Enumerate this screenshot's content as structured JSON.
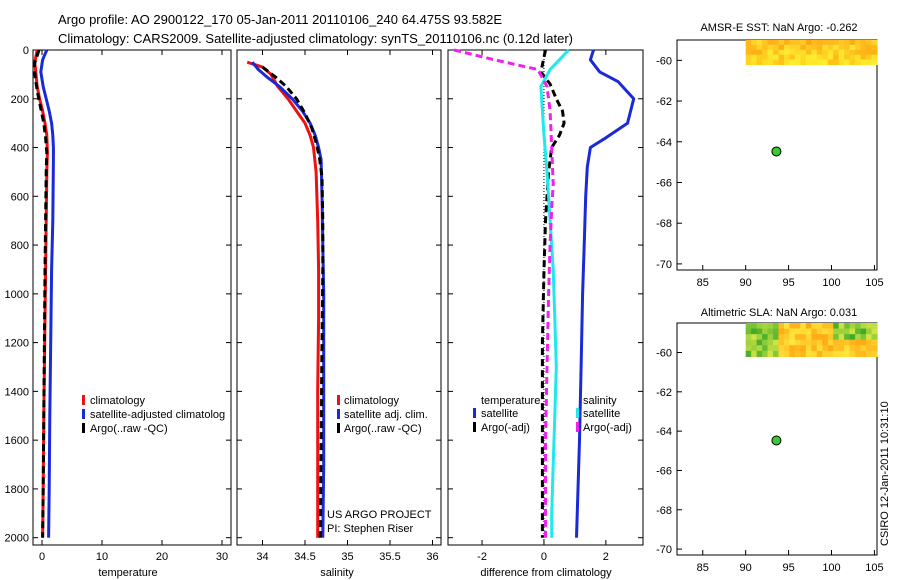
{
  "figure": {
    "title_line1": "Argo profile: AO 2900122_170 05-Jan-2011 20110106_240 64.475S 93.582E",
    "title_line2": "Climatology: CARS2009. Satellite-adjusted climatology: synTS_20110106.nc (0.12d later)",
    "credit_line1": "US ARGO PROJECT",
    "credit_line2": "PI: Stephen Riser",
    "stamp": "CSIRO 12-Jan-2011 10:31:10"
  },
  "colors": {
    "climatology": "#ee1111",
    "satellite": "#1a2ad6",
    "argo": "#000000",
    "satellite_salinity": "#22e8ee",
    "argo_salinity": "#ee22ee",
    "map_point": "#33cc33"
  },
  "chart_data": [
    {
      "id": "temperature",
      "type": "line",
      "xlabel": "temperature",
      "xlim": [
        -1.5,
        31.5
      ],
      "ylim": [
        2030,
        0
      ],
      "xticks": [
        0,
        10,
        20,
        30
      ],
      "xtick_labels": [
        "0",
        "10",
        "20",
        "30"
      ],
      "yticks": [
        0,
        200,
        400,
        600,
        800,
        1000,
        1200,
        1400,
        1600,
        1800,
        2000
      ],
      "ytick_labels": [
        "0",
        "200",
        "400",
        "600",
        "800",
        "1000",
        "1200",
        "1400",
        "1600",
        "1800",
        "2000"
      ],
      "legend": [
        "climatology",
        "satellite-adjusted climatolog",
        "Argo(..raw -QC)"
      ],
      "series": [
        {
          "name": "climatology",
          "style": "solid",
          "color": "#ee1111",
          "x": [
            -0.8,
            -1.2,
            -1.0,
            -0.8,
            -0.4,
            0.1,
            0.5,
            0.8,
            0.9,
            0.8,
            0.7,
            0.6,
            0.5,
            0.4,
            0.3,
            0.2,
            0.1
          ],
          "y": [
            0,
            50,
            100,
            150,
            200,
            250,
            300,
            350,
            420,
            500,
            700,
            900,
            1100,
            1300,
            1500,
            1800,
            2000
          ]
        },
        {
          "name": "satellite-adjusted climatolog",
          "style": "solid",
          "color": "#1a2ad6",
          "x": [
            0.8,
            0.1,
            -0.2,
            0.2,
            0.7,
            1.2,
            1.6,
            1.8,
            1.9,
            1.9,
            1.8,
            1.6,
            1.5,
            1.4,
            1.3,
            1.2,
            1.1
          ],
          "y": [
            0,
            40,
            90,
            150,
            200,
            250,
            300,
            350,
            400,
            450,
            700,
            900,
            1100,
            1300,
            1500,
            1800,
            2000
          ]
        },
        {
          "name": "Argo(..raw -QC)",
          "style": "dashed",
          "color": "#000000",
          "x": [
            -0.5,
            -1.3,
            -1.1,
            -0.7,
            -0.2,
            0.3,
            0.6,
            0.8,
            0.7,
            0.6,
            0.5,
            0.4,
            0.3,
            0.2,
            0.1
          ],
          "y": [
            0,
            60,
            120,
            180,
            240,
            300,
            360,
            420,
            500,
            700,
            900,
            1200,
            1500,
            1800,
            2000
          ]
        }
      ]
    },
    {
      "id": "salinity",
      "type": "line",
      "xlabel": "salinity",
      "xlim": [
        33.7,
        36.1
      ],
      "ylim": [
        2030,
        0
      ],
      "xticks": [
        34,
        34.5,
        35,
        35.5,
        36
      ],
      "xtick_labels": [
        "34",
        "34.5",
        "35",
        "35.5",
        "36"
      ],
      "legend": [
        "climatology",
        "satellite adj. clim.",
        "Argo(..raw -QC)"
      ],
      "series": [
        {
          "name": "climatology",
          "style": "solid",
          "color": "#ee1111",
          "x": [
            33.82,
            34.0,
            34.1,
            34.18,
            34.3,
            34.4,
            34.5,
            34.56,
            34.6,
            34.63,
            34.65,
            34.66,
            34.66,
            34.65,
            34.65,
            34.65
          ],
          "y": [
            50,
            70,
            100,
            150,
            200,
            250,
            300,
            350,
            400,
            500,
            700,
            900,
            1100,
            1400,
            1700,
            2000
          ]
        },
        {
          "name": "satellite adj. clim.",
          "style": "solid",
          "color": "#1a2ad6",
          "x": [
            33.88,
            33.95,
            34.05,
            34.2,
            34.35,
            34.47,
            34.56,
            34.62,
            34.66,
            34.69,
            34.7,
            34.71,
            34.72,
            34.72,
            34.72,
            34.71
          ],
          "y": [
            50,
            80,
            110,
            150,
            200,
            250,
            300,
            350,
            400,
            450,
            600,
            800,
            1000,
            1300,
            1700,
            2000
          ]
        },
        {
          "name": "Argo(..raw -QC)",
          "style": "dashed",
          "color": "#000000",
          "x": [
            34.0,
            34.15,
            34.28,
            34.4,
            34.5,
            34.58,
            34.63,
            34.67,
            34.7,
            34.71,
            34.71,
            34.7,
            34.69,
            34.68
          ],
          "y": [
            70,
            110,
            150,
            200,
            260,
            320,
            380,
            440,
            520,
            700,
            900,
            1200,
            1600,
            2000
          ]
        }
      ]
    },
    {
      "id": "difference",
      "type": "line",
      "xlabel": "difference from climatology",
      "xlim": [
        -3.1,
        3.2
      ],
      "ylim": [
        2030,
        0
      ],
      "xticks": [
        -2,
        0,
        2
      ],
      "xtick_labels": [
        "-2",
        "0",
        "2"
      ],
      "legend_left_title": "temperature",
      "legend_right_title": "salinity",
      "legend": [
        "satellite",
        "Argo(-adj)",
        "satellite",
        "Argo(-adj)"
      ],
      "series": [
        {
          "name": "temperature satellite",
          "style": "solid",
          "color": "#1a2ad6",
          "x": [
            1.6,
            1.5,
            1.8,
            2.4,
            2.9,
            2.7,
            2.0,
            1.5,
            1.4,
            1.35,
            1.3,
            1.25,
            1.2,
            1.15,
            1.1,
            1.05
          ],
          "y": [
            0,
            40,
            90,
            130,
            200,
            300,
            360,
            400,
            480,
            600,
            800,
            1000,
            1300,
            1600,
            1800,
            2000
          ]
        },
        {
          "name": "temperature Argo(-adj)",
          "style": "dashed",
          "color": "#000000",
          "x": [
            0.05,
            -0.1,
            0.2,
            0.4,
            0.6,
            0.65,
            0.5,
            0.25,
            0.15,
            0.05,
            0.0,
            -0.05,
            -0.05,
            -0.05
          ],
          "y": [
            0,
            90,
            140,
            200,
            250,
            300,
            350,
            400,
            500,
            700,
            900,
            1200,
            1600,
            2000
          ]
        },
        {
          "name": "salinity satellite",
          "style": "solid",
          "color": "#22e8ee",
          "x": [
            0.8,
            0.5,
            0.2,
            -0.1,
            -0.05,
            0.0,
            0.1,
            0.2,
            0.3,
            0.35,
            0.4,
            0.35,
            0.3,
            0.25,
            0.25
          ],
          "y": [
            0,
            40,
            80,
            150,
            250,
            350,
            500,
            700,
            900,
            1100,
            1300,
            1500,
            1700,
            1900,
            2000
          ]
        },
        {
          "name": "salinity Argo(-adj)",
          "style": "dashed",
          "color": "#ee22ee",
          "x": [
            -2.9,
            -1.6,
            -0.2,
            0.1,
            0.2,
            0.25,
            0.3,
            0.25,
            0.2,
            0.15,
            0.1,
            0.05,
            0.05
          ],
          "y": [
            0,
            40,
            80,
            150,
            250,
            400,
            550,
            650,
            800,
            1000,
            1300,
            1600,
            2000
          ]
        }
      ]
    },
    {
      "id": "map_sst",
      "type": "heatmap",
      "title": "AMSR-E SST: NaN Argo: -0.262",
      "xlim": [
        82,
        105.3
      ],
      "ylim": [
        -70.3,
        -59
      ],
      "xticks": [
        85,
        90,
        95,
        100,
        105
      ],
      "xtick_labels": [
        "85",
        "90",
        "95",
        "100",
        "105"
      ],
      "yticks": [
        -60,
        -62,
        -64,
        -66,
        -68,
        -70
      ],
      "ytick_labels": [
        "-60",
        "-62",
        "-64",
        "-66",
        "-68",
        "-70"
      ],
      "field_extent": {
        "x": [
          90,
          105.3
        ],
        "y": [
          -60.2,
          -59
        ]
      },
      "point": {
        "lon": 93.582,
        "lat": -64.475
      }
    },
    {
      "id": "map_sla",
      "type": "heatmap",
      "title": "Altimetric SLA: NaN Argo: 0.031",
      "xlim": [
        82,
        105.3
      ],
      "ylim": [
        -70.3,
        -58.5
      ],
      "xticks": [
        85,
        90,
        95,
        100,
        105
      ],
      "xtick_labels": [
        "85",
        "90",
        "95",
        "100",
        "105"
      ],
      "yticks": [
        -60,
        -62,
        -64,
        -66,
        -68,
        -70
      ],
      "ytick_labels": [
        "-60",
        "-62",
        "-64",
        "-66",
        "-68",
        "-70"
      ],
      "field_extent": {
        "x": [
          90,
          105.3
        ],
        "y": [
          -60.2,
          -58.5
        ]
      },
      "point": {
        "lon": 93.582,
        "lat": -64.475
      }
    }
  ]
}
